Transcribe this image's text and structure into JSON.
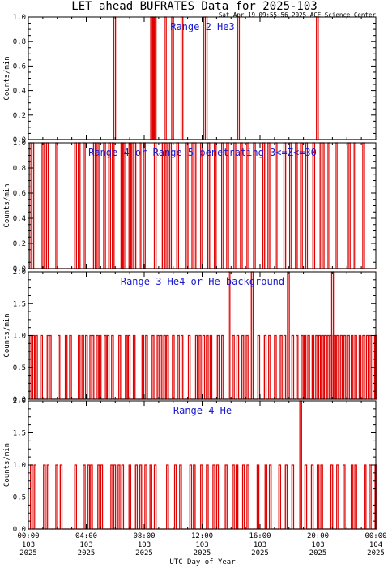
{
  "header": {
    "title": "LET ahead BUFRATES Data for 2025-103",
    "timestamp": "Sat Apr 19 09:55:56 2025 ACE Science Center"
  },
  "xaxis": {
    "label": "UTC Day of Year",
    "ticks": [
      {
        "hour": 0,
        "time": "00:00",
        "doy": "103",
        "year": "2025"
      },
      {
        "hour": 4,
        "time": "04:00",
        "doy": "103",
        "year": "2025"
      },
      {
        "hour": 8,
        "time": "08:00",
        "doy": "103",
        "year": "2025"
      },
      {
        "hour": 12,
        "time": "12:00",
        "doy": "103",
        "year": "2025"
      },
      {
        "hour": 16,
        "time": "16:00",
        "doy": "103",
        "year": "2025"
      },
      {
        "hour": 20,
        "time": "20:00",
        "doy": "103",
        "year": "2025"
      },
      {
        "hour": 24,
        "time": "00:00",
        "doy": "104",
        "year": "2025"
      }
    ]
  },
  "colors": {
    "data": "#e00000",
    "title": "#1a1acc",
    "axis": "#000000"
  },
  "chart_data": [
    {
      "type": "line",
      "title": "Range 2 He3",
      "ylabel": "Counts/min",
      "ylim": [
        0,
        1.0
      ],
      "yticks": [
        "0.0",
        "0.2",
        "0.4",
        "0.6",
        "0.8",
        "1.0"
      ],
      "xlim": [
        0,
        24
      ],
      "x_units": "hours UTC, day 103",
      "events": [
        [
          5.9,
          1
        ],
        [
          8.45,
          1
        ],
        [
          8.55,
          1
        ],
        [
          8.62,
          1
        ],
        [
          8.7,
          1
        ],
        [
          9.4,
          1
        ],
        [
          9.9,
          1
        ],
        [
          10.55,
          1
        ],
        [
          12.1,
          1
        ],
        [
          12.22,
          1
        ],
        [
          14.45,
          1
        ],
        [
          19.9,
          1
        ]
      ]
    },
    {
      "type": "line",
      "title": "Range 4 or Range 5 penetrating 3<=Z<=30",
      "ylabel": "Counts/min",
      "ylim": [
        0,
        1.0
      ],
      "yticks": [
        "0.0",
        "0.2",
        "0.4",
        "0.6",
        "0.8",
        "1.0"
      ],
      "xlim": [
        0,
        24
      ],
      "x_units": "hours UTC, day 103",
      "events": [
        [
          0.1,
          1
        ],
        [
          0.25,
          1
        ],
        [
          0.95,
          1
        ],
        [
          1.25,
          1
        ],
        [
          1.9,
          1
        ],
        [
          3.2,
          1
        ],
        [
          3.45,
          1
        ],
        [
          3.8,
          1
        ],
        [
          4.5,
          1
        ],
        [
          4.75,
          1
        ],
        [
          5.2,
          1
        ],
        [
          5.55,
          1
        ],
        [
          5.8,
          1
        ],
        [
          6.4,
          1
        ],
        [
          6.6,
          1
        ],
        [
          6.95,
          1
        ],
        [
          7.15,
          1
        ],
        [
          7.3,
          1
        ],
        [
          7.65,
          1
        ],
        [
          7.95,
          1
        ],
        [
          8.7,
          1
        ],
        [
          9.25,
          1
        ],
        [
          9.45,
          1
        ],
        [
          9.75,
          1
        ],
        [
          10.25,
          1
        ],
        [
          10.9,
          1
        ],
        [
          11.3,
          1
        ],
        [
          11.45,
          1
        ],
        [
          11.9,
          1
        ],
        [
          12.4,
          1
        ],
        [
          12.85,
          1
        ],
        [
          13.35,
          1
        ],
        [
          13.7,
          1
        ],
        [
          14.2,
          1
        ],
        [
          14.65,
          1
        ],
        [
          15.1,
          1
        ],
        [
          15.55,
          1
        ],
        [
          16.2,
          1
        ],
        [
          16.55,
          1
        ],
        [
          17.05,
          1
        ],
        [
          17.65,
          1
        ],
        [
          18.05,
          1
        ],
        [
          18.45,
          1
        ],
        [
          18.8,
          1
        ],
        [
          19.15,
          1
        ],
        [
          19.65,
          1
        ],
        [
          20.15,
          1
        ],
        [
          20.3,
          1
        ],
        [
          20.7,
          1
        ],
        [
          21.2,
          1
        ],
        [
          22.1,
          1
        ],
        [
          22.5,
          1
        ],
        [
          23.1,
          1
        ]
      ]
    },
    {
      "type": "line",
      "title": "Range 3 He4 or He background",
      "ylabel": "Counts/min",
      "ylim": [
        0,
        2.0
      ],
      "yticks": [
        "0.0",
        "0.5",
        "1.0",
        "1.5",
        "2.0"
      ],
      "xlim": [
        0,
        24
      ],
      "x_units": "hours UTC, day 103",
      "events": [
        [
          0.1,
          1
        ],
        [
          0.3,
          1
        ],
        [
          0.5,
          1
        ],
        [
          0.85,
          1
        ],
        [
          1.3,
          1
        ],
        [
          1.45,
          1
        ],
        [
          2.05,
          1
        ],
        [
          2.55,
          1
        ],
        [
          2.85,
          1
        ],
        [
          3.45,
          1
        ],
        [
          3.7,
          1
        ],
        [
          3.95,
          1
        ],
        [
          4.25,
          1
        ],
        [
          4.4,
          1
        ],
        [
          4.7,
          1
        ],
        [
          4.9,
          1
        ],
        [
          5.25,
          1
        ],
        [
          5.45,
          1
        ],
        [
          5.75,
          1
        ],
        [
          6.25,
          1
        ],
        [
          6.7,
          1
        ],
        [
          6.9,
          1
        ],
        [
          7.25,
          1
        ],
        [
          7.85,
          1
        ],
        [
          8.1,
          1
        ],
        [
          8.55,
          1
        ],
        [
          8.9,
          1
        ],
        [
          9.1,
          1
        ],
        [
          9.35,
          1
        ],
        [
          9.55,
          1
        ],
        [
          9.95,
          1
        ],
        [
          10.3,
          1
        ],
        [
          10.55,
          1
        ],
        [
          11.05,
          1
        ],
        [
          11.55,
          1
        ],
        [
          11.8,
          1
        ],
        [
          12.05,
          1
        ],
        [
          12.3,
          1
        ],
        [
          12.55,
          1
        ],
        [
          13.05,
          1
        ],
        [
          13.35,
          1
        ],
        [
          13.8,
          2
        ],
        [
          14.1,
          1
        ],
        [
          14.4,
          1
        ],
        [
          14.75,
          1
        ],
        [
          15.05,
          1
        ],
        [
          15.4,
          2
        ],
        [
          15.85,
          1
        ],
        [
          16.3,
          1
        ],
        [
          16.6,
          1
        ],
        [
          17.0,
          1
        ],
        [
          17.4,
          1
        ],
        [
          17.65,
          1
        ],
        [
          17.9,
          2
        ],
        [
          18.2,
          1
        ],
        [
          18.5,
          1
        ],
        [
          18.85,
          1
        ],
        [
          19.05,
          1
        ],
        [
          19.3,
          1
        ],
        [
          19.6,
          1
        ],
        [
          19.85,
          1
        ],
        [
          20.05,
          1
        ],
        [
          20.25,
          1
        ],
        [
          20.45,
          1
        ],
        [
          20.65,
          1
        ],
        [
          20.85,
          1
        ],
        [
          20.95,
          2
        ],
        [
          21.1,
          1
        ],
        [
          21.3,
          1
        ],
        [
          21.55,
          1
        ],
        [
          21.8,
          1
        ],
        [
          22.05,
          1
        ],
        [
          22.3,
          1
        ],
        [
          22.55,
          1
        ],
        [
          22.85,
          1
        ],
        [
          23.1,
          1
        ],
        [
          23.35,
          1
        ],
        [
          23.55,
          1
        ],
        [
          23.8,
          1
        ],
        [
          23.95,
          1
        ]
      ]
    },
    {
      "type": "line",
      "title": "Range 4 He",
      "ylabel": "Counts/min",
      "ylim": [
        0,
        2.0
      ],
      "yticks": [
        "0.0",
        "0.5",
        "1.0",
        "1.5",
        "2.0"
      ],
      "xlim": [
        0,
        24
      ],
      "x_units": "hours UTC, day 103",
      "events": [
        [
          0.15,
          1
        ],
        [
          0.4,
          1
        ],
        [
          1.05,
          1
        ],
        [
          1.3,
          1
        ],
        [
          1.9,
          1
        ],
        [
          2.2,
          1
        ],
        [
          3.2,
          1
        ],
        [
          3.8,
          1
        ],
        [
          4.1,
          1
        ],
        [
          4.3,
          1
        ],
        [
          4.8,
          1
        ],
        [
          5.0,
          1
        ],
        [
          5.7,
          1
        ],
        [
          5.9,
          1
        ],
        [
          6.2,
          1
        ],
        [
          6.45,
          1
        ],
        [
          6.95,
          1
        ],
        [
          7.4,
          1
        ],
        [
          7.7,
          1
        ],
        [
          8.05,
          1
        ],
        [
          8.4,
          1
        ],
        [
          8.7,
          1
        ],
        [
          9.55,
          1
        ],
        [
          10.1,
          1
        ],
        [
          10.45,
          1
        ],
        [
          11.15,
          1
        ],
        [
          11.4,
          1
        ],
        [
          11.9,
          1
        ],
        [
          12.3,
          1
        ],
        [
          12.75,
          1
        ],
        [
          13.0,
          1
        ],
        [
          13.6,
          1
        ],
        [
          14.1,
          1
        ],
        [
          14.35,
          1
        ],
        [
          14.8,
          1
        ],
        [
          15.1,
          1
        ],
        [
          15.8,
          1
        ],
        [
          16.35,
          1
        ],
        [
          16.65,
          1
        ],
        [
          17.3,
          1
        ],
        [
          17.75,
          1
        ],
        [
          18.2,
          1
        ],
        [
          18.75,
          2
        ],
        [
          19.1,
          1
        ],
        [
          19.55,
          1
        ],
        [
          19.95,
          1
        ],
        [
          20.2,
          1
        ],
        [
          20.9,
          1
        ],
        [
          21.3,
          1
        ],
        [
          21.75,
          1
        ],
        [
          22.3,
          1
        ],
        [
          22.55,
          1
        ],
        [
          23.2,
          1
        ],
        [
          23.55,
          1
        ],
        [
          23.95,
          1
        ]
      ]
    }
  ]
}
